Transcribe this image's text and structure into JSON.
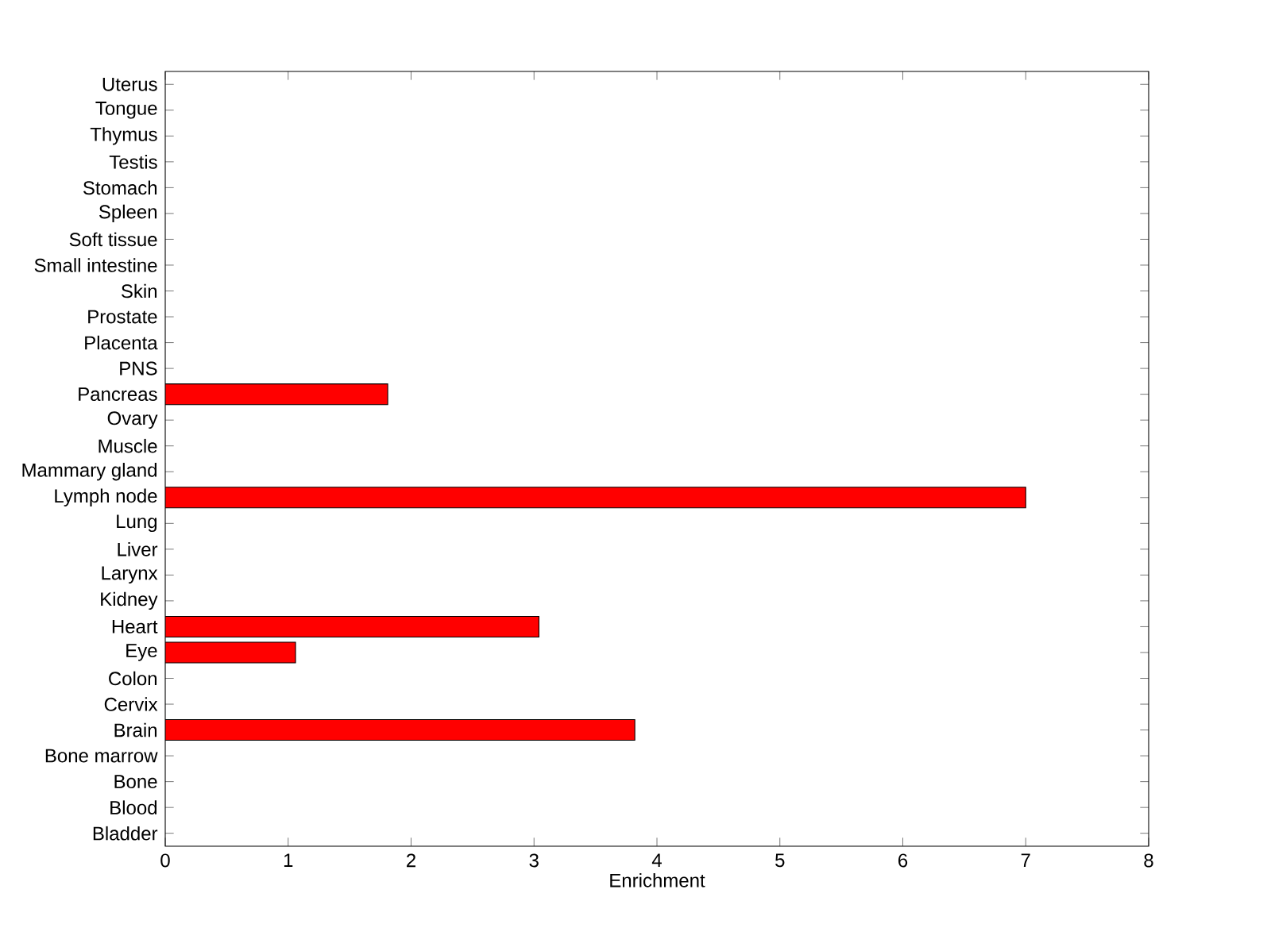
{
  "chart_data": {
    "type": "bar",
    "orientation": "horizontal",
    "xlabel": "Enrichment",
    "categories": [
      "Uterus",
      "Tongue",
      "Thymus",
      "Testis",
      "Stomach",
      "Spleen",
      "Soft tissue",
      "Small intestine",
      "Skin",
      "Prostate",
      "Placenta",
      "PNS",
      "Pancreas",
      "Ovary",
      "Muscle",
      "Mammary gland",
      "Lymph node",
      "Lung",
      "Liver",
      "Larynx",
      "Kidney",
      "Heart",
      "Eye",
      "Colon",
      "Cervix",
      "Brain",
      "Bone marrow",
      "Bone",
      "Blood",
      "Bladder"
    ],
    "values": [
      0,
      0,
      0,
      0,
      0,
      0,
      0,
      0,
      0,
      0,
      0,
      0,
      1.81,
      0,
      0,
      0,
      7.0,
      0,
      0,
      0,
      0,
      3.04,
      1.06,
      0,
      0,
      3.82,
      0,
      0,
      0,
      0
    ],
    "color": "#ff0000",
    "xlim": [
      0,
      8
    ],
    "xticks": [
      0,
      1,
      2,
      3,
      4,
      5,
      6,
      7,
      8
    ]
  }
}
